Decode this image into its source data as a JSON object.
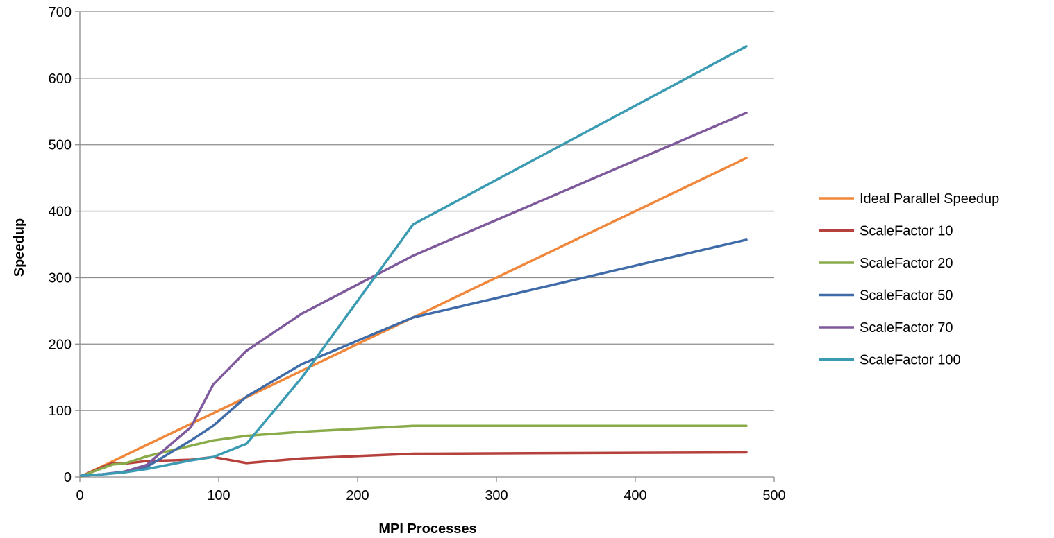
{
  "chart_data": {
    "type": "line",
    "title": "",
    "xlabel": "MPI Processes",
    "ylabel": "Speedup",
    "xlim": [
      0,
      500
    ],
    "ylim": [
      0,
      700
    ],
    "x_ticks": [
      "0",
      "100",
      "200",
      "300",
      "400",
      "500"
    ],
    "y_ticks": [
      "0",
      "100",
      "200",
      "300",
      "400",
      "500",
      "600",
      "700"
    ],
    "grid": "horizontal",
    "legend_position": "right",
    "series": [
      {
        "name": "Ideal Parallel Speedup",
        "color": "#F0873A",
        "x": [
          1,
          16,
          32,
          48,
          80,
          96,
          120,
          160,
          240,
          480
        ],
        "y": [
          1,
          16,
          32,
          48,
          80,
          96,
          120,
          160,
          240,
          480
        ]
      },
      {
        "name": "ScaleFactor 10",
        "color": "#B5403C",
        "x": [
          1,
          16,
          24,
          32,
          48,
          80,
          96,
          120,
          160,
          240,
          480
        ],
        "y": [
          1,
          15,
          21,
          20,
          24,
          26,
          30,
          21,
          28,
          35,
          37
        ]
      },
      {
        "name": "ScaleFactor 20",
        "color": "#8AAB4A",
        "x": [
          1,
          16,
          24,
          32,
          48,
          80,
          96,
          120,
          160,
          240,
          480
        ],
        "y": [
          1,
          13,
          19,
          20,
          31,
          47,
          55,
          62,
          68,
          77,
          77
        ]
      },
      {
        "name": "ScaleFactor 50",
        "color": "#3F6BA8",
        "x": [
          1,
          16,
          32,
          48,
          80,
          96,
          120,
          160,
          240,
          480
        ],
        "y": [
          2,
          4,
          8,
          15,
          55,
          77,
          121,
          170,
          240,
          357
        ]
      },
      {
        "name": "ScaleFactor 70",
        "color": "#7E5A9C",
        "x": [
          1,
          16,
          32,
          48,
          80,
          96,
          120,
          160,
          240,
          480
        ],
        "y": [
          2,
          4,
          8,
          18,
          75,
          139,
          190,
          246,
          333,
          548
        ]
      },
      {
        "name": "ScaleFactor 100",
        "color": "#3A9BB3",
        "x": [
          1,
          16,
          32,
          48,
          80,
          96,
          120,
          160,
          240,
          480
        ],
        "y": [
          2,
          4,
          7,
          12,
          25,
          30,
          50,
          150,
          380,
          648
        ]
      }
    ]
  }
}
